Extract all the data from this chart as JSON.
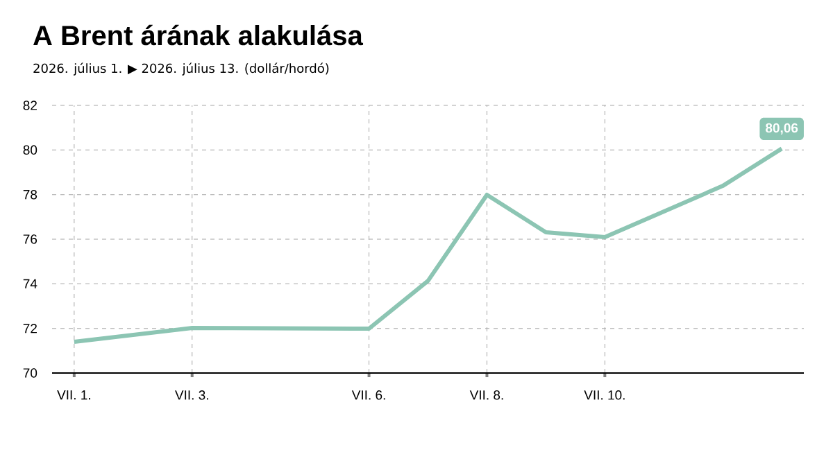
{
  "chart_data": {
    "type": "line",
    "title": "A Brent árának alakulása",
    "subtitle": "2026. július 1. ▶ 2026. július 13.  (dollár/hordó)",
    "x": [
      "2026-07-01",
      "2026-07-03",
      "2026-07-06",
      "2026-07-07",
      "2026-07-08",
      "2026-07-09",
      "2026-07-10",
      "2026-07-12",
      "2026-07-13"
    ],
    "series": [
      {
        "color": "#8cc5b3",
        "values": [
          71.4,
          72.02,
          71.99,
          74.13,
          77.99,
          76.31,
          76.09,
          78.39,
          80.06
        ],
        "value_labels": [
          null,
          null,
          null,
          null,
          null,
          null,
          null,
          null,
          "80,06"
        ]
      }
    ],
    "xlim": [
      "2026-06-30T15:00",
      "2026-07-13T09:00"
    ],
    "xticks": [
      {
        "value": "2026-07-01",
        "label": "VII. 1."
      },
      {
        "value": "2026-07-03",
        "label": "VII. 3."
      },
      {
        "value": "2026-07-06",
        "label": "VII. 6."
      },
      {
        "value": "2026-07-08",
        "label": "VII. 8."
      },
      {
        "value": "2026-07-10",
        "label": "VII. 10."
      }
    ],
    "ylim": [
      70,
      82
    ],
    "yticks": [
      70,
      72,
      74,
      76,
      78,
      80,
      82
    ],
    "grid": true,
    "legend": false,
    "marker": "none",
    "line_style": "solid"
  }
}
